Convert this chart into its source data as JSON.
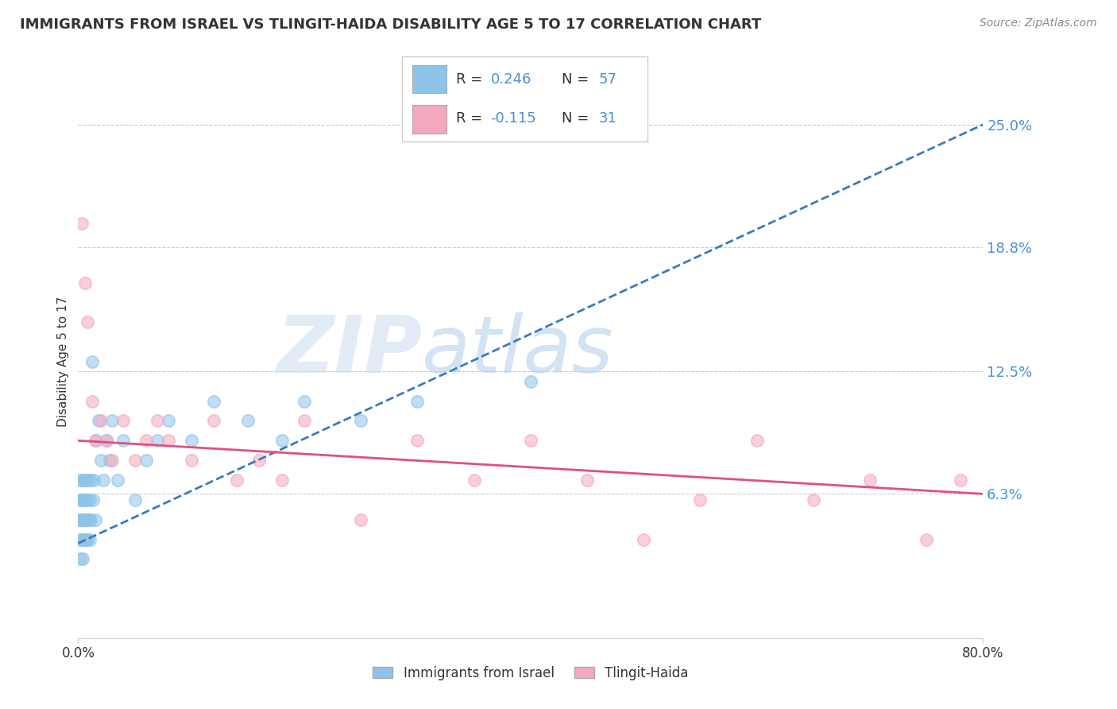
{
  "title": "IMMIGRANTS FROM ISRAEL VS TLINGIT-HAIDA DISABILITY AGE 5 TO 17 CORRELATION CHART",
  "source": "Source: ZipAtlas.com",
  "ylabel": "Disability Age 5 to 17",
  "ytick_vals": [
    0.063,
    0.125,
    0.188,
    0.25
  ],
  "ytick_labels": [
    "6.3%",
    "12.5%",
    "18.8%",
    "25.0%"
  ],
  "xmin": 0.0,
  "xmax": 0.8,
  "ymin": -0.01,
  "ymax": 0.27,
  "color_blue": "#8ec4e8",
  "color_pink": "#f4a8be",
  "color_blue_line": "#3a7abf",
  "color_pink_line": "#e05080",
  "watermark_zip": "ZIP",
  "watermark_atlas": "atlas",
  "israel_x": [
    0.001,
    0.001,
    0.001,
    0.002,
    0.002,
    0.002,
    0.003,
    0.003,
    0.003,
    0.003,
    0.004,
    0.004,
    0.004,
    0.005,
    0.005,
    0.005,
    0.005,
    0.006,
    0.006,
    0.006,
    0.007,
    0.007,
    0.007,
    0.008,
    0.008,
    0.009,
    0.009,
    0.01,
    0.01,
    0.01,
    0.011,
    0.011,
    0.012,
    0.013,
    0.014,
    0.015,
    0.016,
    0.018,
    0.02,
    0.022,
    0.025,
    0.028,
    0.03,
    0.035,
    0.04,
    0.05,
    0.06,
    0.07,
    0.08,
    0.1,
    0.12,
    0.15,
    0.18,
    0.2,
    0.25,
    0.3,
    0.4
  ],
  "israel_y": [
    0.04,
    0.05,
    0.06,
    0.03,
    0.05,
    0.07,
    0.04,
    0.05,
    0.06,
    0.07,
    0.03,
    0.05,
    0.06,
    0.04,
    0.05,
    0.06,
    0.07,
    0.04,
    0.05,
    0.06,
    0.04,
    0.05,
    0.07,
    0.04,
    0.06,
    0.05,
    0.07,
    0.04,
    0.05,
    0.06,
    0.05,
    0.07,
    0.13,
    0.06,
    0.07,
    0.05,
    0.09,
    0.1,
    0.08,
    0.07,
    0.09,
    0.08,
    0.1,
    0.07,
    0.09,
    0.06,
    0.08,
    0.09,
    0.1,
    0.09,
    0.11,
    0.1,
    0.09,
    0.11,
    0.1,
    0.11,
    0.12
  ],
  "tlingit_x": [
    0.003,
    0.006,
    0.008,
    0.012,
    0.015,
    0.02,
    0.025,
    0.03,
    0.04,
    0.05,
    0.06,
    0.07,
    0.08,
    0.1,
    0.12,
    0.14,
    0.16,
    0.18,
    0.2,
    0.25,
    0.3,
    0.35,
    0.4,
    0.45,
    0.5,
    0.55,
    0.6,
    0.65,
    0.7,
    0.75,
    0.78
  ],
  "tlingit_y": [
    0.2,
    0.17,
    0.15,
    0.11,
    0.09,
    0.1,
    0.09,
    0.08,
    0.1,
    0.08,
    0.09,
    0.1,
    0.09,
    0.08,
    0.1,
    0.07,
    0.08,
    0.07,
    0.1,
    0.05,
    0.09,
    0.07,
    0.09,
    0.07,
    0.04,
    0.06,
    0.09,
    0.06,
    0.07,
    0.04,
    0.07
  ],
  "blue_trend_x0": 0.0,
  "blue_trend_y0": 0.038,
  "blue_trend_x1": 0.8,
  "blue_trend_y1": 0.25,
  "pink_trend_x0": 0.0,
  "pink_trend_y0": 0.09,
  "pink_trend_x1": 0.8,
  "pink_trend_y1": 0.063
}
